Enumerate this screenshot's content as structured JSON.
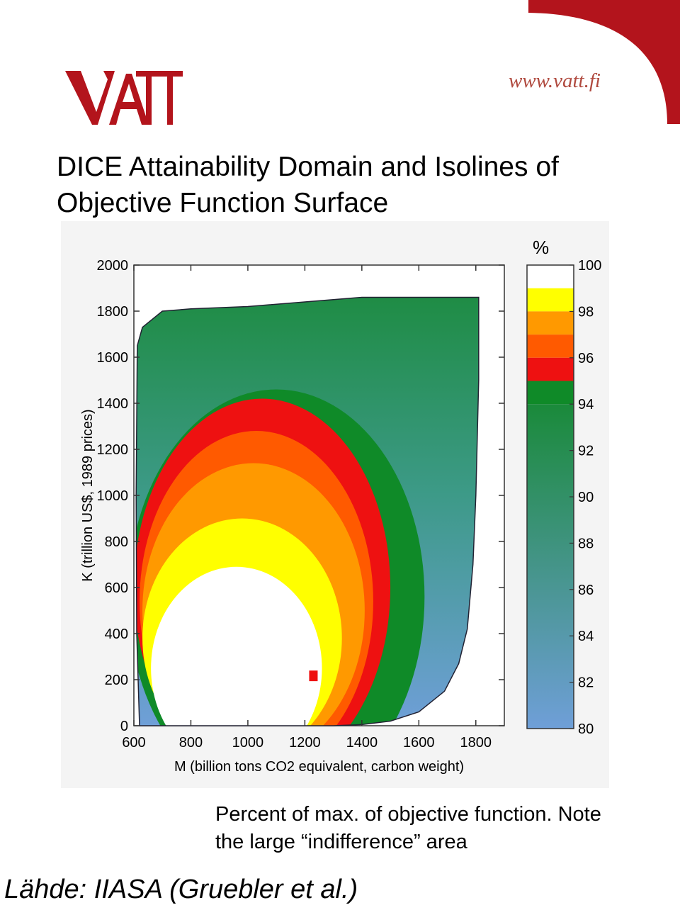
{
  "header": {
    "logo_text": "VATT",
    "logo_color": "#b3141c",
    "site_url": "www.vatt.fi",
    "corner_color": "#b3141c"
  },
  "title": {
    "line1": "DICE Attainability Domain and Isolines of",
    "line2": "Objective Function Surface"
  },
  "chart_data": {
    "type": "heatmap",
    "xlabel": "M (billion tons CO2 equivalent, carbon weight)",
    "ylabel": "K (trillion US$, 1989 prices)",
    "x_ticks": [
      600,
      800,
      1000,
      1200,
      1400,
      1600,
      1800
    ],
    "y_ticks": [
      0,
      200,
      400,
      600,
      800,
      1000,
      1200,
      1400,
      1600,
      1800,
      2000
    ],
    "xlim": [
      600,
      1900
    ],
    "ylim": [
      0,
      2000
    ],
    "colorbar": {
      "unit": "%",
      "range": [
        80,
        100
      ],
      "tick_labels": [
        100,
        98,
        96,
        94,
        92,
        90,
        88,
        86,
        84,
        82,
        80
      ],
      "bands": [
        {
          "from": 99,
          "to": 100,
          "color": "#ffffff"
        },
        {
          "from": 98,
          "to": 99,
          "color": "#ffff00"
        },
        {
          "from": 97,
          "to": 98,
          "color": "#ff9900"
        },
        {
          "from": 96,
          "to": 97,
          "color": "#ff5a00"
        },
        {
          "from": 95,
          "to": 96,
          "color": "#ee1111"
        },
        {
          "from": 94,
          "to": 95,
          "color": "#0f8a28"
        },
        {
          "from": 80,
          "to": 94,
          "gradient_start": "#1a8a3a",
          "gradient_end": "#6f9fd8"
        }
      ]
    },
    "domain_boundary_left": [
      [
        620,
        0
      ],
      [
        610,
        400
      ],
      [
        608,
        1000
      ],
      [
        612,
        1650
      ],
      [
        630,
        1730
      ],
      [
        700,
        1800
      ],
      [
        800,
        1810
      ],
      [
        1000,
        1820
      ],
      [
        1200,
        1840
      ],
      [
        1400,
        1860
      ],
      [
        1600,
        1860
      ],
      [
        1800,
        1860
      ],
      [
        1810,
        1860
      ]
    ],
    "domain_boundary_right": [
      [
        1810,
        1860
      ],
      [
        1810,
        1500
      ],
      [
        1800,
        1000
      ],
      [
        1790,
        700
      ],
      [
        1770,
        420
      ],
      [
        1740,
        270
      ],
      [
        1690,
        150
      ],
      [
        1600,
        60
      ],
      [
        1500,
        20
      ],
      [
        1400,
        5
      ],
      [
        1300,
        0
      ],
      [
        620,
        0
      ]
    ],
    "marker": {
      "x": 1230,
      "y": 215,
      "color": "#ee1111"
    }
  },
  "caption": {
    "line1": "Percent of max. of objective function. Note",
    "line2": "the large “indifference” area"
  },
  "source": "Lähde: IIASA (Gruebler et al.)"
}
